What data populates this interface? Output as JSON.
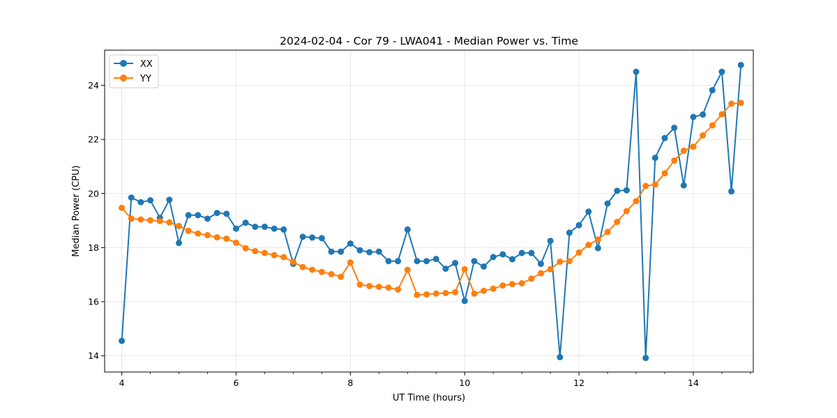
{
  "chart_data": {
    "type": "line",
    "title": "2024-02-04 - Cor 79 - LWA041 - Median Power vs. Time",
    "xlabel": "UT Time (hours)",
    "ylabel": "Median Power (CPU)",
    "xlim": [
      3.7,
      15.05
    ],
    "ylim": [
      13.4,
      25.3
    ],
    "xticks": [
      4,
      6,
      8,
      10,
      12,
      14
    ],
    "xtick_labels": [
      "4",
      "6",
      "8",
      "10",
      "12",
      "14"
    ],
    "yticks": [
      14,
      16,
      18,
      20,
      22,
      24
    ],
    "ytick_labels": [
      "14",
      "16",
      "18",
      "20",
      "22",
      "24"
    ],
    "grid": true,
    "legend_position": "top-left",
    "x": [
      4.0,
      4.167,
      4.333,
      4.5,
      4.667,
      4.833,
      5.0,
      5.167,
      5.333,
      5.5,
      5.667,
      5.833,
      6.0,
      6.167,
      6.333,
      6.5,
      6.667,
      6.833,
      7.0,
      7.167,
      7.333,
      7.5,
      7.667,
      7.833,
      8.0,
      8.167,
      8.333,
      8.5,
      8.667,
      8.833,
      9.0,
      9.167,
      9.333,
      9.5,
      9.667,
      9.833,
      10.0,
      10.167,
      10.333,
      10.5,
      10.667,
      10.833,
      11.0,
      11.167,
      11.333,
      11.5,
      11.667,
      11.833,
      12.0,
      12.167,
      12.333,
      12.5,
      12.667,
      12.833,
      13.0,
      13.167,
      13.333,
      13.5,
      13.667,
      13.833,
      14.0,
      14.167,
      14.333,
      14.5,
      14.667,
      14.833
    ],
    "series": [
      {
        "name": "XX",
        "color": "#1f77b4",
        "values": [
          14.55,
          19.85,
          19.68,
          19.75,
          19.1,
          19.77,
          18.17,
          19.2,
          19.2,
          19.07,
          19.28,
          19.25,
          18.7,
          18.92,
          18.77,
          18.77,
          18.7,
          18.67,
          17.4,
          18.4,
          18.37,
          18.35,
          17.85,
          17.85,
          18.15,
          17.9,
          17.83,
          17.85,
          17.5,
          17.5,
          18.67,
          17.5,
          17.5,
          17.58,
          17.22,
          17.43,
          16.03,
          17.5,
          17.3,
          17.65,
          17.75,
          17.57,
          17.8,
          17.8,
          17.4,
          18.25,
          13.95,
          18.55,
          18.83,
          19.33,
          17.98,
          19.63,
          20.1,
          20.12,
          24.5,
          13.92,
          21.32,
          22.05,
          22.43,
          20.3,
          22.83,
          22.92,
          23.82,
          24.5,
          20.08,
          24.75
        ]
      },
      {
        "name": "YY",
        "color": "#ff7f0e",
        "values": [
          19.47,
          19.07,
          19.04,
          19.01,
          18.98,
          18.93,
          18.8,
          18.62,
          18.52,
          18.46,
          18.38,
          18.33,
          18.18,
          17.98,
          17.87,
          17.8,
          17.72,
          17.65,
          17.47,
          17.28,
          17.18,
          17.1,
          17.02,
          16.92,
          17.45,
          16.63,
          16.58,
          16.55,
          16.52,
          16.45,
          17.18,
          16.25,
          16.27,
          16.3,
          16.32,
          16.35,
          17.2,
          16.3,
          16.4,
          16.48,
          16.6,
          16.65,
          16.68,
          16.85,
          17.05,
          17.2,
          17.48,
          17.5,
          17.82,
          18.1,
          18.3,
          18.58,
          18.95,
          19.35,
          19.72,
          20.28,
          20.33,
          20.75,
          21.22,
          21.58,
          21.73,
          22.15,
          22.52,
          22.93,
          23.32,
          23.35
        ]
      }
    ]
  }
}
